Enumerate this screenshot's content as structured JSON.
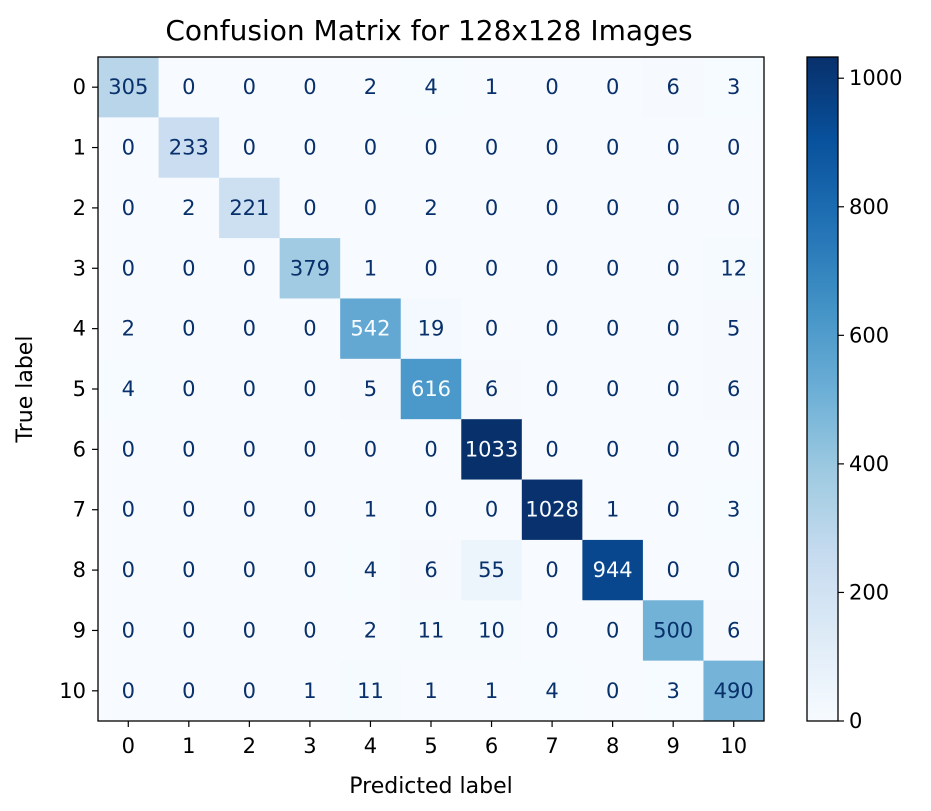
{
  "chart_data": {
    "type": "heatmap",
    "title": "Confusion Matrix for 128x128 Images",
    "xlabel": "Predicted label",
    "ylabel": "True label",
    "x_categories": [
      "0",
      "1",
      "2",
      "3",
      "4",
      "5",
      "6",
      "7",
      "8",
      "9",
      "10"
    ],
    "y_categories": [
      "0",
      "1",
      "2",
      "3",
      "4",
      "5",
      "6",
      "7",
      "8",
      "9",
      "10"
    ],
    "matrix": [
      [
        305,
        0,
        0,
        0,
        2,
        4,
        1,
        0,
        0,
        6,
        3
      ],
      [
        0,
        233,
        0,
        0,
        0,
        0,
        0,
        0,
        0,
        0,
        0
      ],
      [
        0,
        2,
        221,
        0,
        0,
        2,
        0,
        0,
        0,
        0,
        0
      ],
      [
        0,
        0,
        0,
        379,
        1,
        0,
        0,
        0,
        0,
        0,
        12
      ],
      [
        2,
        0,
        0,
        0,
        542,
        19,
        0,
        0,
        0,
        0,
        5
      ],
      [
        4,
        0,
        0,
        0,
        5,
        616,
        6,
        0,
        0,
        0,
        6
      ],
      [
        0,
        0,
        0,
        0,
        0,
        0,
        1033,
        0,
        0,
        0,
        0
      ],
      [
        0,
        0,
        0,
        0,
        1,
        0,
        0,
        1028,
        1,
        0,
        3
      ],
      [
        0,
        0,
        0,
        0,
        4,
        6,
        55,
        0,
        944,
        0,
        0
      ],
      [
        0,
        0,
        0,
        0,
        2,
        11,
        10,
        0,
        0,
        500,
        6
      ],
      [
        0,
        0,
        0,
        1,
        11,
        1,
        1,
        4,
        0,
        3,
        490
      ]
    ],
    "colormap": "Blues",
    "color_range": [
      0,
      1033
    ],
    "colorbar": {
      "ticks": [
        0,
        200,
        400,
        600,
        800,
        1000
      ],
      "tick_labels": [
        "0",
        "200",
        "400",
        "600",
        "800",
        "1000"
      ]
    },
    "grid": false
  }
}
